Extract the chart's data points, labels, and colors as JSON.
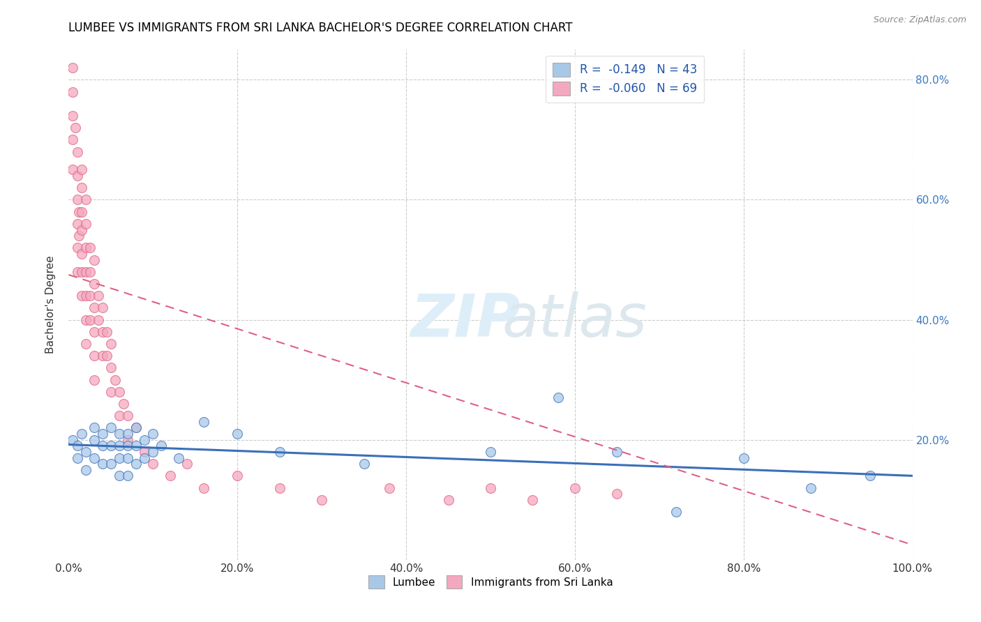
{
  "title": "LUMBEE VS IMMIGRANTS FROM SRI LANKA BACHELOR'S DEGREE CORRELATION CHART",
  "source_text": "Source: ZipAtlas.com",
  "ylabel": "Bachelor's Degree",
  "xlim": [
    0.0,
    1.0
  ],
  "ylim": [
    0.0,
    0.85
  ],
  "x_tick_labels": [
    "0.0%",
    "20.0%",
    "40.0%",
    "60.0%",
    "80.0%",
    "100.0%"
  ],
  "x_tick_vals": [
    0.0,
    0.2,
    0.4,
    0.6,
    0.8,
    1.0
  ],
  "y_tick_labels": [
    "20.0%",
    "40.0%",
    "60.0%",
    "80.0%"
  ],
  "y_tick_vals": [
    0.2,
    0.4,
    0.6,
    0.8
  ],
  "legend_r1": "R =  -0.149   N = 43",
  "legend_r2": "R =  -0.060   N = 69",
  "color_lumbee": "#a8c8e8",
  "color_srilanka": "#f4a8c0",
  "color_lumbee_line": "#3a6fba",
  "color_srilanka_line": "#e06080",
  "lumbee_x": [
    0.005,
    0.01,
    0.01,
    0.015,
    0.02,
    0.02,
    0.03,
    0.03,
    0.03,
    0.04,
    0.04,
    0.04,
    0.05,
    0.05,
    0.05,
    0.06,
    0.06,
    0.06,
    0.06,
    0.07,
    0.07,
    0.07,
    0.07,
    0.08,
    0.08,
    0.08,
    0.09,
    0.09,
    0.1,
    0.1,
    0.11,
    0.13,
    0.16,
    0.2,
    0.25,
    0.35,
    0.5,
    0.58,
    0.65,
    0.72,
    0.8,
    0.88,
    0.95
  ],
  "lumbee_y": [
    0.2,
    0.19,
    0.17,
    0.21,
    0.18,
    0.15,
    0.22,
    0.2,
    0.17,
    0.21,
    0.19,
    0.16,
    0.22,
    0.19,
    0.16,
    0.21,
    0.19,
    0.17,
    0.14,
    0.21,
    0.19,
    0.17,
    0.14,
    0.22,
    0.19,
    0.16,
    0.2,
    0.17,
    0.21,
    0.18,
    0.19,
    0.17,
    0.23,
    0.21,
    0.18,
    0.16,
    0.18,
    0.27,
    0.18,
    0.08,
    0.17,
    0.12,
    0.14
  ],
  "srilanka_x": [
    0.005,
    0.005,
    0.005,
    0.005,
    0.005,
    0.008,
    0.01,
    0.01,
    0.01,
    0.01,
    0.01,
    0.01,
    0.012,
    0.012,
    0.015,
    0.015,
    0.015,
    0.015,
    0.015,
    0.015,
    0.015,
    0.02,
    0.02,
    0.02,
    0.02,
    0.02,
    0.02,
    0.02,
    0.025,
    0.025,
    0.025,
    0.025,
    0.03,
    0.03,
    0.03,
    0.03,
    0.03,
    0.03,
    0.035,
    0.035,
    0.04,
    0.04,
    0.04,
    0.045,
    0.045,
    0.05,
    0.05,
    0.05,
    0.055,
    0.06,
    0.06,
    0.065,
    0.07,
    0.07,
    0.08,
    0.09,
    0.1,
    0.12,
    0.14,
    0.16,
    0.2,
    0.25,
    0.3,
    0.38,
    0.45,
    0.5,
    0.55,
    0.6,
    0.65
  ],
  "srilanka_y": [
    0.82,
    0.78,
    0.74,
    0.7,
    0.65,
    0.72,
    0.68,
    0.64,
    0.6,
    0.56,
    0.52,
    0.48,
    0.58,
    0.54,
    0.65,
    0.62,
    0.58,
    0.55,
    0.51,
    0.48,
    0.44,
    0.6,
    0.56,
    0.52,
    0.48,
    0.44,
    0.4,
    0.36,
    0.52,
    0.48,
    0.44,
    0.4,
    0.5,
    0.46,
    0.42,
    0.38,
    0.34,
    0.3,
    0.44,
    0.4,
    0.42,
    0.38,
    0.34,
    0.38,
    0.34,
    0.36,
    0.32,
    0.28,
    0.3,
    0.28,
    0.24,
    0.26,
    0.24,
    0.2,
    0.22,
    0.18,
    0.16,
    0.14,
    0.16,
    0.12,
    0.14,
    0.12,
    0.1,
    0.12,
    0.1,
    0.12,
    0.1,
    0.12,
    0.11
  ],
  "lumbee_line_x": [
    0.0,
    1.0
  ],
  "lumbee_line_y": [
    0.192,
    0.14
  ],
  "srilanka_line_x": [
    0.0,
    1.0
  ],
  "srilanka_line_y": [
    0.475,
    0.025
  ]
}
